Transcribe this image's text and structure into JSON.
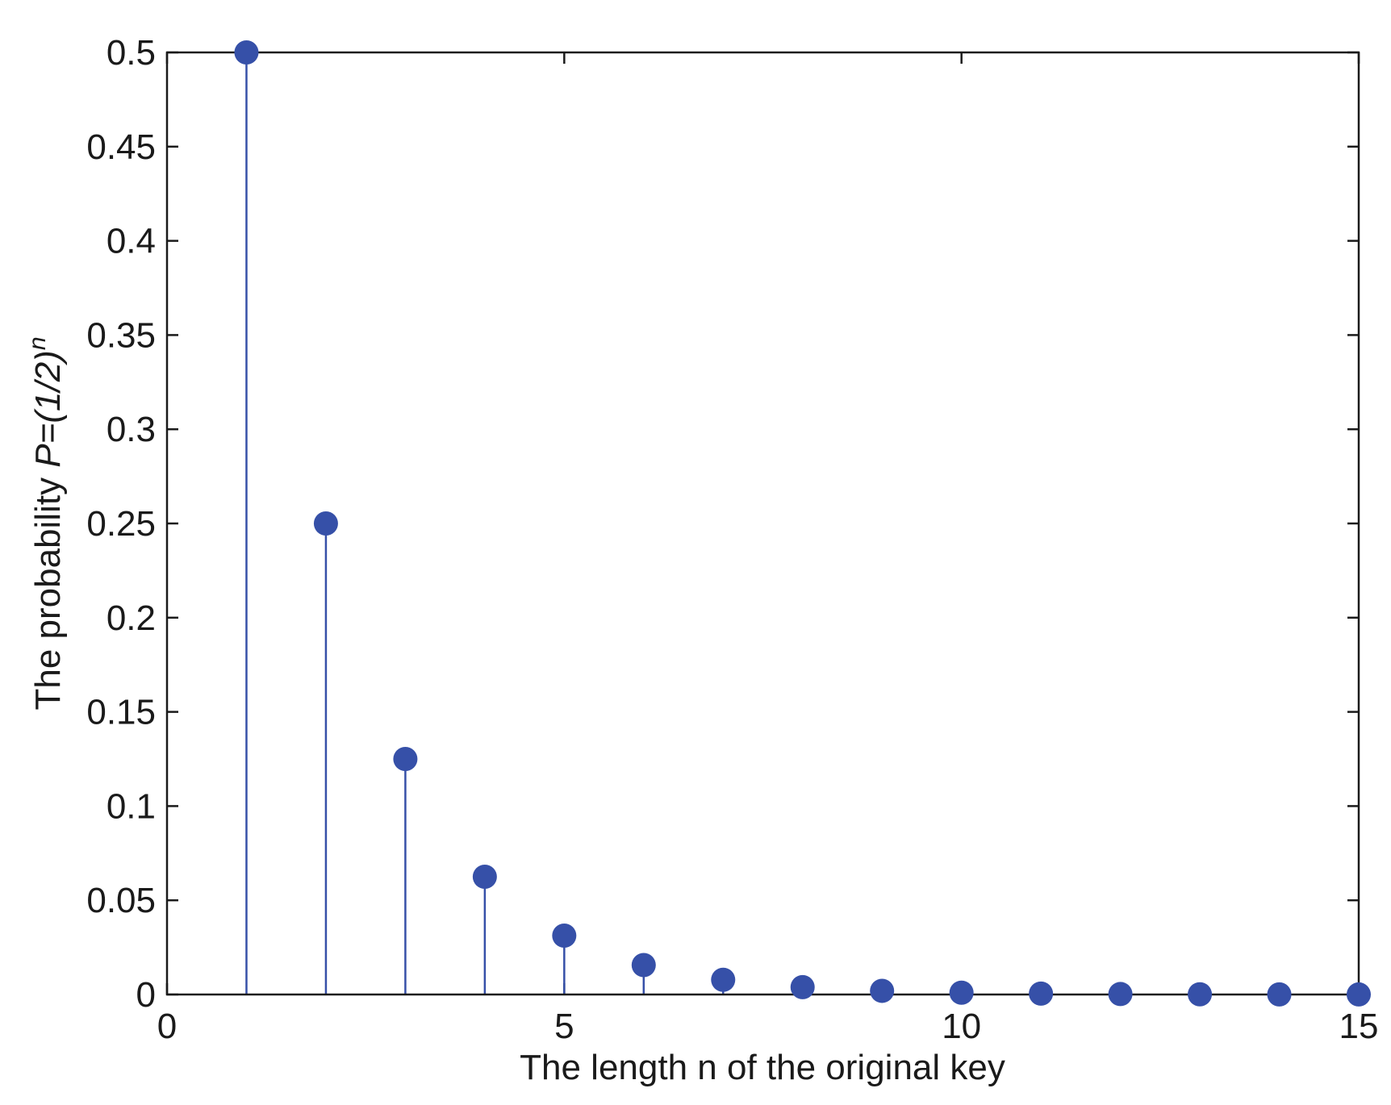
{
  "chart_data": {
    "type": "stem",
    "title": "",
    "xlabel": "The length n of the original key",
    "ylabel": {
      "prefix": "The probability ",
      "formula_base": "P=(1/2)",
      "formula_exp": "n"
    },
    "xlim": [
      0,
      15
    ],
    "ylim": [
      0,
      0.5
    ],
    "x_ticks": [
      0,
      5,
      10,
      15
    ],
    "x_tick_labels": [
      "0",
      "5",
      "10",
      "15"
    ],
    "y_ticks": [
      0,
      0.05,
      0.1,
      0.15,
      0.2,
      0.25,
      0.3,
      0.35,
      0.4,
      0.45,
      0.5
    ],
    "y_tick_labels": [
      "0",
      "0.05",
      "0.1",
      "0.15",
      "0.2",
      "0.25",
      "0.3",
      "0.35",
      "0.4",
      "0.45",
      "0.5"
    ],
    "grid": false,
    "legend": "none",
    "series": [
      {
        "color": "#3650a8",
        "x": [
          1,
          2,
          3,
          4,
          5,
          6,
          7,
          8,
          9,
          10,
          11,
          12,
          13,
          14,
          15
        ],
        "y": [
          0.5,
          0.25,
          0.125,
          0.0625,
          0.03125,
          0.015625,
          0.0078125,
          0.00390625,
          0.001953125,
          0.0009765625,
          0.00048828125,
          0.000244140625,
          0.0001220703125,
          6.103515625e-05,
          3.0517578125e-05
        ]
      }
    ]
  }
}
